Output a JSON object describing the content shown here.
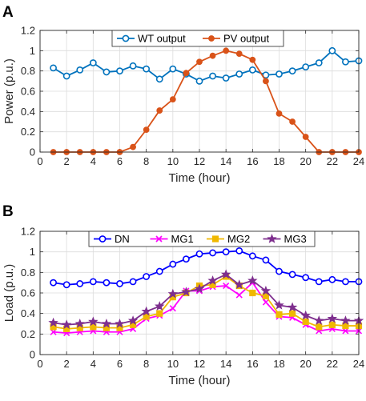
{
  "chart_data": [
    {
      "type": "line",
      "panel_label": "A",
      "xlabel": "Time (hour)",
      "ylabel": "Power (p.u.)",
      "xlim": [
        0,
        24
      ],
      "ylim": [
        0,
        1.2
      ],
      "xticks": [
        "0",
        "2",
        "4",
        "6",
        "8",
        "10",
        "12",
        "14",
        "16",
        "18",
        "20",
        "22",
        "24"
      ],
      "yticks": [
        "0",
        "0.2",
        "0.4",
        "0.6",
        "0.8",
        "1",
        "1.2"
      ],
      "grid": true,
      "legend_position": "top-center",
      "x": [
        1,
        2,
        3,
        4,
        5,
        6,
        7,
        8,
        9,
        10,
        11,
        12,
        13,
        14,
        15,
        16,
        17,
        18,
        19,
        20,
        21,
        22,
        23,
        24
      ],
      "series": [
        {
          "name": "WT output",
          "color": "#0072BD",
          "marker": "circle",
          "values": [
            0.83,
            0.75,
            0.81,
            0.88,
            0.79,
            0.8,
            0.85,
            0.82,
            0.72,
            0.82,
            0.77,
            0.7,
            0.75,
            0.73,
            0.77,
            0.81,
            0.76,
            0.77,
            0.8,
            0.84,
            0.88,
            1.0,
            0.89,
            0.9
          ]
        },
        {
          "name": "PV output",
          "color": "#D95319",
          "marker": "circle-filled",
          "values": [
            0,
            0,
            0,
            0,
            0,
            0,
            0.05,
            0.22,
            0.41,
            0.52,
            0.78,
            0.89,
            0.95,
            1.0,
            0.97,
            0.91,
            0.7,
            0.38,
            0.3,
            0.15,
            0,
            0,
            0,
            0
          ]
        }
      ]
    },
    {
      "type": "line",
      "panel_label": "B",
      "xlabel": "Time (hour)",
      "ylabel": "Load (p.u.)",
      "xlim": [
        0,
        24
      ],
      "ylim": [
        0,
        1.2
      ],
      "xticks": [
        "0",
        "2",
        "4",
        "6",
        "8",
        "10",
        "12",
        "14",
        "16",
        "18",
        "20",
        "22",
        "24"
      ],
      "yticks": [
        "0",
        "0.2",
        "0.4",
        "0.6",
        "0.8",
        "1",
        "1.2"
      ],
      "grid": true,
      "legend_position": "top-center",
      "x": [
        1,
        2,
        3,
        4,
        5,
        6,
        7,
        8,
        9,
        10,
        11,
        12,
        13,
        14,
        15,
        16,
        17,
        18,
        19,
        20,
        21,
        22,
        23,
        24
      ],
      "series": [
        {
          "name": "DN",
          "color": "#0000FF",
          "marker": "circle",
          "values": [
            0.7,
            0.68,
            0.69,
            0.71,
            0.7,
            0.69,
            0.71,
            0.76,
            0.81,
            0.88,
            0.93,
            0.98,
            0.99,
            1.0,
            1.01,
            0.96,
            0.92,
            0.81,
            0.78,
            0.75,
            0.71,
            0.73,
            0.71,
            0.71
          ]
        },
        {
          "name": "MG1",
          "color": "#FF00FF",
          "marker": "x",
          "values": [
            0.22,
            0.21,
            0.22,
            0.23,
            0.22,
            0.22,
            0.25,
            0.35,
            0.38,
            0.45,
            0.62,
            0.62,
            0.66,
            0.67,
            0.58,
            0.7,
            0.51,
            0.37,
            0.36,
            0.29,
            0.23,
            0.25,
            0.23,
            0.23
          ]
        },
        {
          "name": "MG2",
          "color": "#F0B800",
          "marker": "square",
          "values": [
            0.27,
            0.25,
            0.26,
            0.27,
            0.26,
            0.26,
            0.29,
            0.37,
            0.4,
            0.56,
            0.6,
            0.67,
            0.68,
            0.76,
            0.67,
            0.6,
            0.57,
            0.39,
            0.4,
            0.32,
            0.27,
            0.29,
            0.28,
            0.28
          ]
        },
        {
          "name": "MG3",
          "color": "#7E2F8E",
          "marker": "star",
          "values": [
            0.31,
            0.29,
            0.3,
            0.32,
            0.3,
            0.3,
            0.33,
            0.42,
            0.47,
            0.59,
            0.61,
            0.64,
            0.72,
            0.78,
            0.68,
            0.72,
            0.62,
            0.48,
            0.46,
            0.38,
            0.33,
            0.35,
            0.33,
            0.33
          ]
        }
      ]
    }
  ]
}
